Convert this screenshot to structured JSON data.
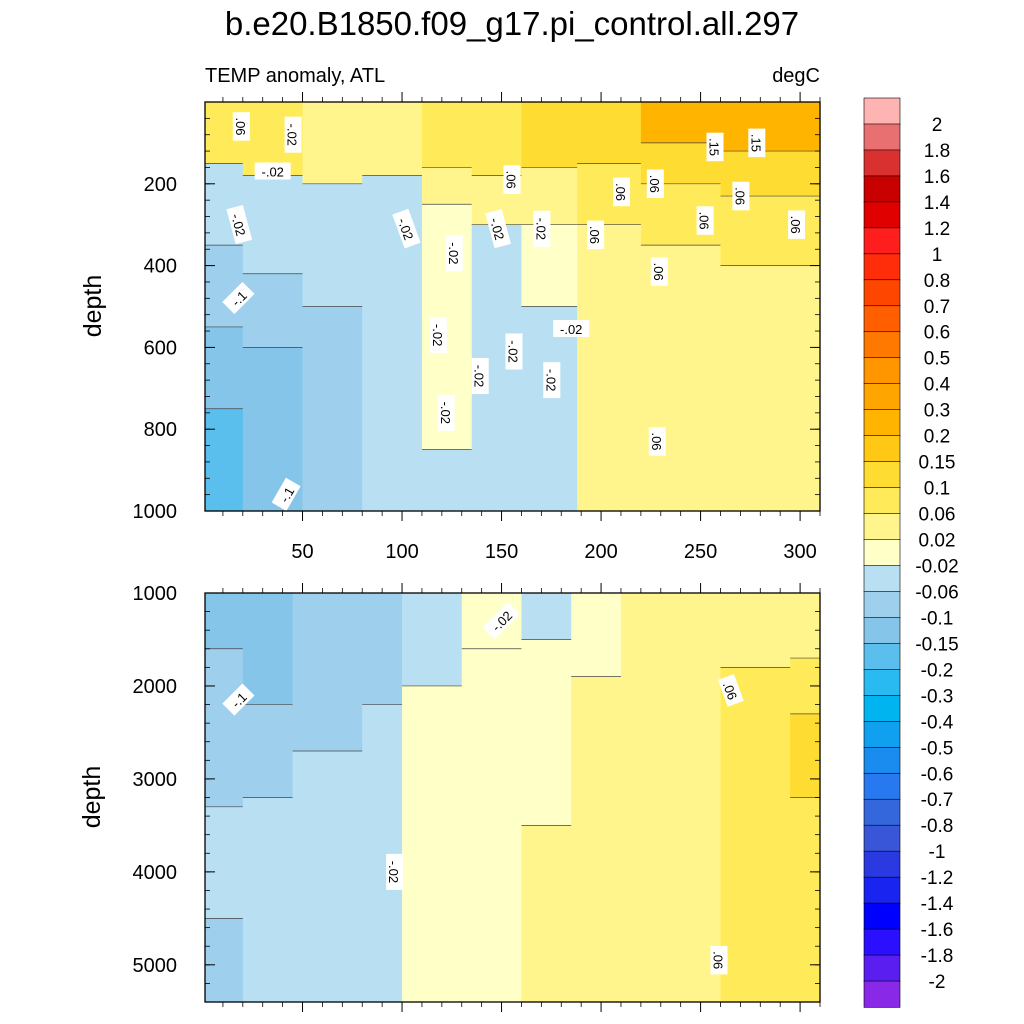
{
  "chart_data": [
    {
      "type": "heatmap",
      "title": "b.e20.B1850.f09_g17.pi_control.all.297",
      "left_subtitle": "TEMP anomaly, ATL",
      "right_subtitle": "degC",
      "ylabel": "depth",
      "xlabel": "",
      "x_ticks": [
        50,
        100,
        150,
        200,
        250,
        300
      ],
      "x_range": [
        1,
        310
      ],
      "y_ticks": [
        200,
        400,
        600,
        800,
        1000
      ],
      "y_range": [
        0,
        1000
      ],
      "y_reversed": true,
      "columns": [
        {
          "x": [
            1,
            20
          ],
          "bands": [
            {
              "d": 0,
              "v": 0.06
            },
            {
              "d": 150,
              "v": -0.04
            },
            {
              "d": 350,
              "v": -0.08
            },
            {
              "d": 550,
              "v": -0.125
            },
            {
              "d": 750,
              "v": -0.175
            }
          ]
        },
        {
          "x": [
            20,
            50
          ],
          "bands": [
            {
              "d": 0,
              "v": 0.06
            },
            {
              "d": 180,
              "v": -0.04
            },
            {
              "d": 420,
              "v": -0.08
            },
            {
              "d": 600,
              "v": -0.125
            }
          ]
        },
        {
          "x": [
            50,
            80
          ],
          "bands": [
            {
              "d": 0,
              "v": 0.04
            },
            {
              "d": 200,
              "v": -0.04
            },
            {
              "d": 500,
              "v": -0.08
            }
          ]
        },
        {
          "x": [
            80,
            110
          ],
          "bands": [
            {
              "d": 0,
              "v": 0.04
            },
            {
              "d": 180,
              "v": -0.04
            }
          ]
        },
        {
          "x": [
            110,
            135
          ],
          "bands": [
            {
              "d": 0,
              "v": 0.08
            },
            {
              "d": 160,
              "v": 0.04
            },
            {
              "d": 250,
              "v": 0.0
            },
            {
              "d": 850,
              "v": -0.04
            }
          ]
        },
        {
          "x": [
            135,
            160
          ],
          "bands": [
            {
              "d": 0,
              "v": 0.08
            },
            {
              "d": 180,
              "v": 0.04
            },
            {
              "d": 300,
              "v": -0.04
            }
          ]
        },
        {
          "x": [
            160,
            188
          ],
          "bands": [
            {
              "d": 0,
              "v": 0.1
            },
            {
              "d": 160,
              "v": 0.04
            },
            {
              "d": 300,
              "v": 0.0
            },
            {
              "d": 500,
              "v": -0.04
            }
          ]
        },
        {
          "x": [
            188,
            220
          ],
          "bands": [
            {
              "d": 0,
              "v": 0.125
            },
            {
              "d": 150,
              "v": 0.08
            },
            {
              "d": 300,
              "v": 0.04
            }
          ]
        },
        {
          "x": [
            220,
            260
          ],
          "bands": [
            {
              "d": 0,
              "v": 0.2
            },
            {
              "d": 100,
              "v": 0.125
            },
            {
              "d": 200,
              "v": 0.08
            },
            {
              "d": 350,
              "v": 0.04
            }
          ]
        },
        {
          "x": [
            260,
            310
          ],
          "bands": [
            {
              "d": 0,
              "v": 0.2
            },
            {
              "d": 120,
              "v": 0.125
            },
            {
              "d": 230,
              "v": 0.08
            },
            {
              "d": 400,
              "v": 0.04
            }
          ]
        }
      ],
      "contour_labels": [
        {
          "x": 19,
          "d": 60,
          "t": ".06",
          "r": 90
        },
        {
          "x": 45,
          "d": 80,
          "t": "-.02",
          "r": 90
        },
        {
          "x": 35,
          "d": 170,
          "t": "-.02",
          "r": 0
        },
        {
          "x": 18,
          "d": 300,
          "t": "-.02",
          "r": 75
        },
        {
          "x": 18,
          "d": 480,
          "t": "-.1",
          "r": -45
        },
        {
          "x": 42,
          "d": 960,
          "t": "-.1",
          "r": -60
        },
        {
          "x": 102,
          "d": 310,
          "t": "-.02",
          "r": 70
        },
        {
          "x": 126,
          "d": 370,
          "t": "-.02",
          "r": 90
        },
        {
          "x": 148,
          "d": 310,
          "t": "-.02",
          "r": 75
        },
        {
          "x": 170,
          "d": 310,
          "t": "-.02",
          "r": 90
        },
        {
          "x": 118,
          "d": 570,
          "t": "-.02",
          "r": 90
        },
        {
          "x": 139,
          "d": 670,
          "t": "-.02",
          "r": 90
        },
        {
          "x": 156,
          "d": 610,
          "t": "-.02",
          "r": 90
        },
        {
          "x": 122,
          "d": 760,
          "t": "-.02",
          "r": 90
        },
        {
          "x": 175,
          "d": 680,
          "t": "-.02",
          "r": 90
        },
        {
          "x": 185,
          "d": 555,
          "t": "-.02",
          "r": 0
        },
        {
          "x": 155,
          "d": 190,
          "t": ".06",
          "r": 90
        },
        {
          "x": 197,
          "d": 325,
          "t": ".06",
          "r": 90
        },
        {
          "x": 210,
          "d": 220,
          "t": ".06",
          "r": 90
        },
        {
          "x": 227,
          "d": 200,
          "t": ".06",
          "r": 90
        },
        {
          "x": 229,
          "d": 415,
          "t": ".06",
          "r": 90
        },
        {
          "x": 252,
          "d": 290,
          "t": ".06",
          "r": 90
        },
        {
          "x": 270,
          "d": 230,
          "t": ".06",
          "r": 90
        },
        {
          "x": 298,
          "d": 300,
          "t": ".06",
          "r": 90
        },
        {
          "x": 257,
          "d": 110,
          "t": ".15",
          "r": 90
        },
        {
          "x": 278,
          "d": 100,
          "t": ".15",
          "r": 90
        },
        {
          "x": 228,
          "d": 830,
          "t": ".06",
          "r": 90
        }
      ]
    },
    {
      "type": "heatmap",
      "ylabel": "depth",
      "x_range": [
        1,
        310
      ],
      "y_ticks": [
        1000,
        2000,
        3000,
        4000,
        5000
      ],
      "y_range": [
        1000,
        5400
      ],
      "y_reversed": true,
      "columns": [
        {
          "x": [
            1,
            20
          ],
          "bands": [
            {
              "d": 1000,
              "v": -0.125
            },
            {
              "d": 1600,
              "v": -0.08
            },
            {
              "d": 3300,
              "v": -0.04
            },
            {
              "d": 4500,
              "v": -0.08
            }
          ]
        },
        {
          "x": [
            20,
            45
          ],
          "bands": [
            {
              "d": 1000,
              "v": -0.125
            },
            {
              "d": 2200,
              "v": -0.08
            },
            {
              "d": 3200,
              "v": -0.04
            }
          ]
        },
        {
          "x": [
            45,
            80
          ],
          "bands": [
            {
              "d": 1000,
              "v": -0.08
            },
            {
              "d": 2700,
              "v": -0.04
            }
          ]
        },
        {
          "x": [
            80,
            100
          ],
          "bands": [
            {
              "d": 1000,
              "v": -0.08
            },
            {
              "d": 2200,
              "v": -0.04
            }
          ]
        },
        {
          "x": [
            100,
            130
          ],
          "bands": [
            {
              "d": 1000,
              "v": -0.04
            },
            {
              "d": 2000,
              "v": 0.0
            }
          ]
        },
        {
          "x": [
            130,
            160
          ],
          "bands": [
            {
              "d": 1000,
              "v": 0.0
            },
            {
              "d": 1600,
              "v": 0.0
            }
          ]
        },
        {
          "x": [
            160,
            185
          ],
          "bands": [
            {
              "d": 1000,
              "v": -0.04
            },
            {
              "d": 1500,
              "v": 0.0
            },
            {
              "d": 3500,
              "v": 0.04
            }
          ]
        },
        {
          "x": [
            185,
            210
          ],
          "bands": [
            {
              "d": 1000,
              "v": 0.0
            },
            {
              "d": 1900,
              "v": 0.04
            }
          ]
        },
        {
          "x": [
            210,
            260
          ],
          "bands": [
            {
              "d": 1000,
              "v": 0.04
            }
          ]
        },
        {
          "x": [
            260,
            295
          ],
          "bands": [
            {
              "d": 1000,
              "v": 0.04
            },
            {
              "d": 1800,
              "v": 0.08
            }
          ]
        },
        {
          "x": [
            295,
            310
          ],
          "bands": [
            {
              "d": 1000,
              "v": 0.04
            },
            {
              "d": 1700,
              "v": 0.08
            },
            {
              "d": 2300,
              "v": 0.125
            },
            {
              "d": 3200,
              "v": 0.08
            }
          ]
        }
      ],
      "contour_labels": [
        {
          "x": 18,
          "d": 2150,
          "t": "-.1",
          "r": -45
        },
        {
          "x": 150,
          "d": 1300,
          "t": "-.02",
          "r": -45
        },
        {
          "x": 96,
          "d": 4000,
          "t": "-.02",
          "r": 90
        },
        {
          "x": 265,
          "d": 2050,
          "t": ".06",
          "r": 70
        },
        {
          "x": 259,
          "d": 4950,
          "t": ".06",
          "r": 90
        }
      ]
    }
  ],
  "colorbar": {
    "labels": [
      "2",
      "1.8",
      "1.6",
      "1.4",
      "1.2",
      "1",
      "0.8",
      "0.7",
      "0.6",
      "0.5",
      "0.4",
      "0.3",
      "0.2",
      "0.15",
      "0.1",
      "0.06",
      "0.02",
      "-0.02",
      "-0.06",
      "-0.1",
      "-0.15",
      "-0.2",
      "-0.3",
      "-0.4",
      "-0.5",
      "-0.6",
      "-0.7",
      "-0.8",
      "-1",
      "-1.2",
      "-1.4",
      "-1.6",
      "-1.8",
      "-2"
    ],
    "colors": [
      "#ffb4b4",
      "#e87070",
      "#d93030",
      "#c80000",
      "#e00000",
      "#ff1e1e",
      "#ff2d0a",
      "#ff4600",
      "#ff5f00",
      "#ff7800",
      "#ff9600",
      "#ffa500",
      "#ffb400",
      "#ffc814",
      "#ffdc32",
      "#ffeb5a",
      "#fff58c",
      "#ffffc8",
      "#b8e0f2",
      "#9ed0ee",
      "#86c5ea",
      "#5abfec",
      "#28baf0",
      "#00b4f0",
      "#10a0f0",
      "#1a8cf0",
      "#2878f0",
      "#3466dc",
      "#3a56d8",
      "#2a3ae0",
      "#1a24f0",
      "#0000ff",
      "#2a10ff",
      "#5a1ef0",
      "#8a28e8"
    ]
  }
}
